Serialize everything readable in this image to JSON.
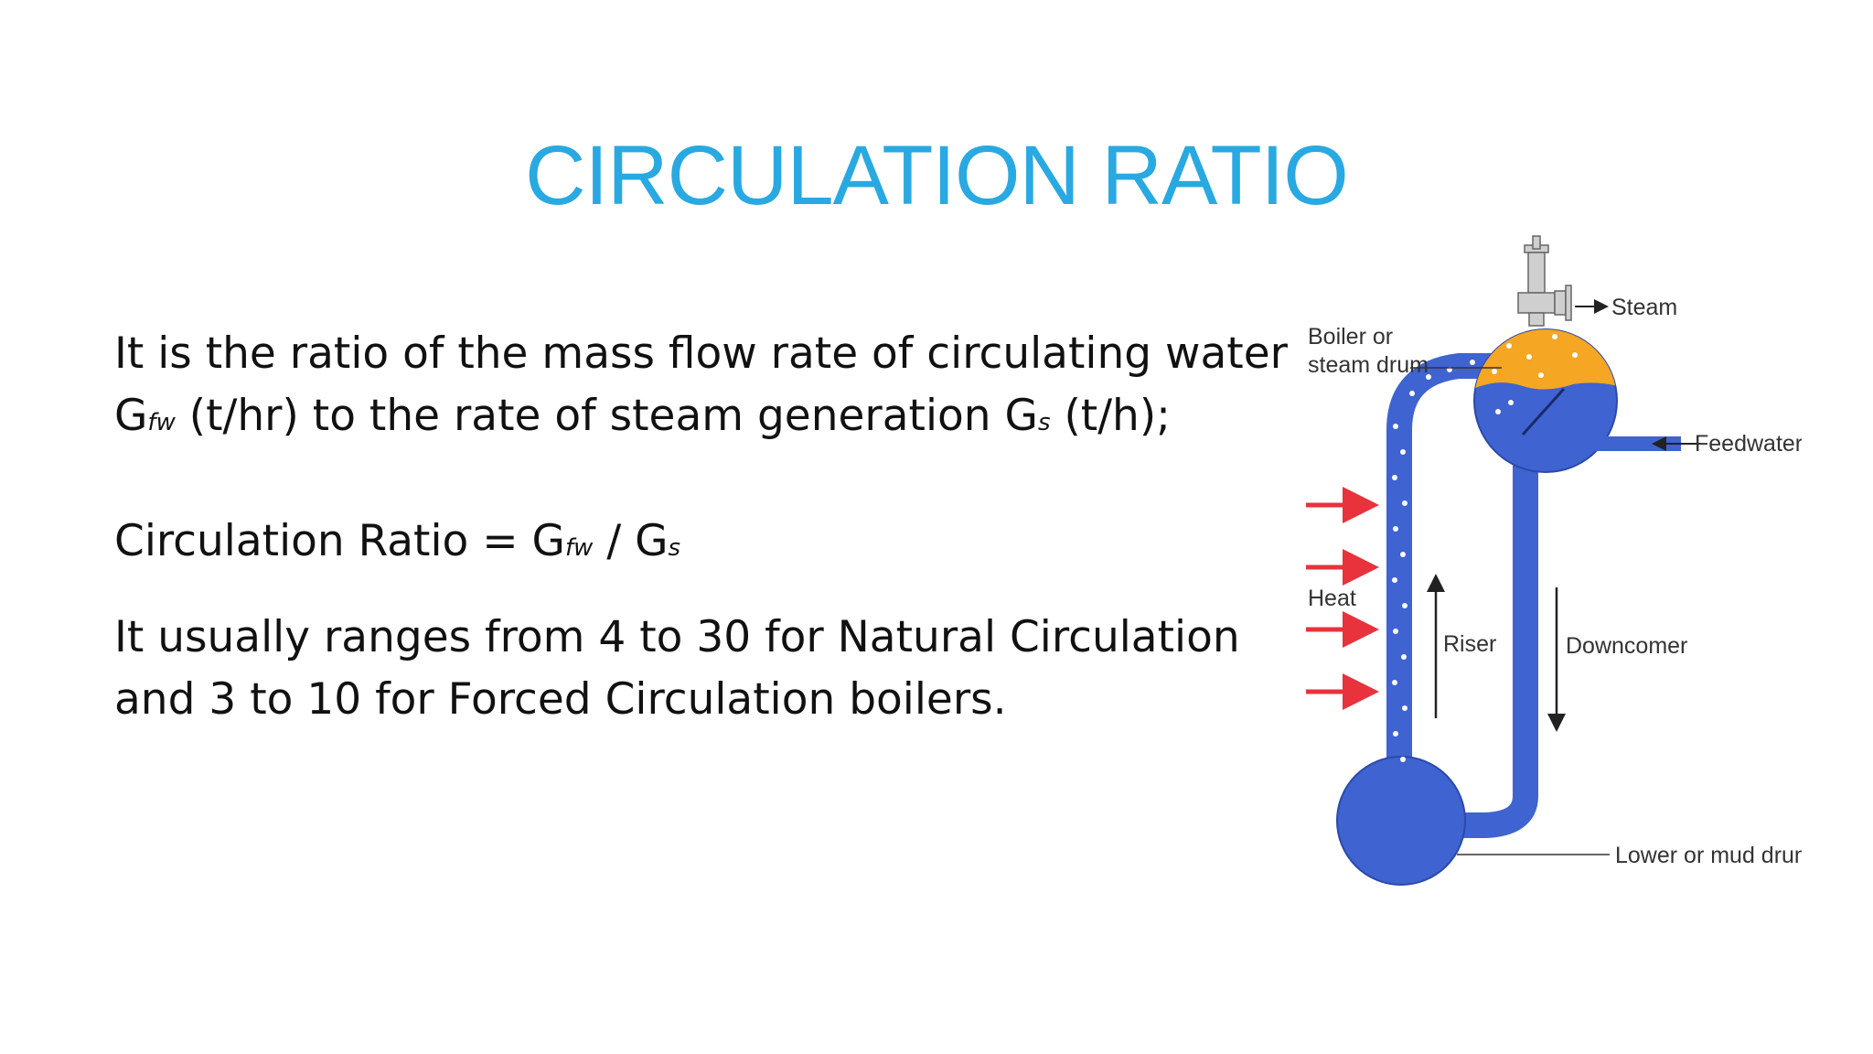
{
  "slide": {
    "title": "CIRCULATION RATIO",
    "para1": {
      "line1": "It is the ratio of the mass flow rate of circulating water",
      "g1": "G",
      "g1_sub": "fw",
      "mid": " (t/hr) to the rate of steam generation G",
      "g2_sub": "s",
      "end": " (t/h);"
    },
    "formula": {
      "prefix": "Circulation Ratio = G",
      "sub1": "fw",
      "mid": " / G",
      "sub2": "s"
    },
    "para3": {
      "line1": "It usually ranges from 4 to 30 for Natural Circulation",
      "line2": "and 3 to 10 for Forced Circulation boilers."
    }
  },
  "diagram": {
    "labels": {
      "steam": "Steam",
      "boiler_drum_line1": "Boiler or",
      "boiler_drum_line2": "steam drum",
      "feedwater": "Feedwater",
      "heat": "Heat",
      "riser": "Riser",
      "downcomer": "Downcomer",
      "mud_drum": "Lower or mud drum"
    },
    "colors": {
      "water": "#3f63d0",
      "steam_space": "#f5a623",
      "heat_arrow": "#e8323c",
      "bubbles": "#ffffff"
    }
  }
}
